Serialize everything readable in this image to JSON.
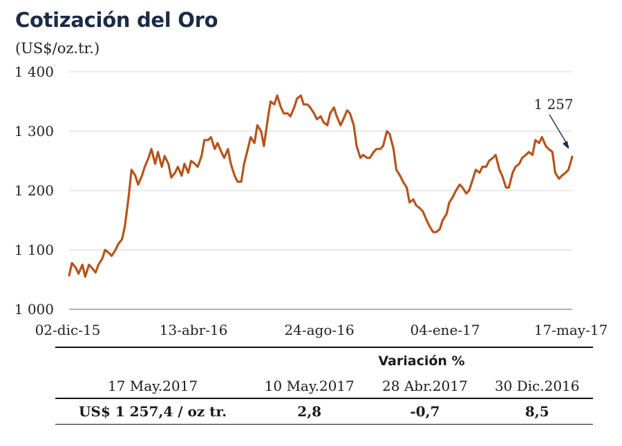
{
  "title": "Cotización del Oro",
  "subtitle": "(US$/oz.tr.)",
  "chart_data": {
    "type": "line",
    "title": "Cotización del Oro",
    "ylabel": "(US$/oz.tr.)",
    "ylim": [
      1000,
      1400
    ],
    "yticks": [
      "1 000",
      "1 100",
      "1 200",
      "1 300",
      "1 400"
    ],
    "ytick_values": [
      1000,
      1100,
      1200,
      1300,
      1400
    ],
    "xticks": [
      "02-dic-15",
      "13-abr-16",
      "24-ago-16",
      "04-ene-17",
      "17-may-17"
    ],
    "xlim": [
      "2015-12-02",
      "2017-05-17"
    ],
    "grid": "horizontal",
    "color": "#b5541c",
    "annotation": "1 257",
    "series": [
      {
        "x": [
          "2015-12-02",
          "2015-12-05",
          "2015-12-09",
          "2015-12-12",
          "2015-12-16",
          "2015-12-19",
          "2015-12-23",
          "2015-12-26",
          "2015-12-30",
          "2016-01-02",
          "2016-01-06",
          "2016-01-09",
          "2016-01-13",
          "2016-01-16",
          "2016-01-20",
          "2016-01-23",
          "2016-01-27",
          "2016-01-30",
          "2016-02-03",
          "2016-02-06",
          "2016-02-10",
          "2016-02-13",
          "2016-02-17",
          "2016-02-20",
          "2016-02-24",
          "2016-02-27",
          "2016-03-02",
          "2016-03-05",
          "2016-03-09",
          "2016-03-12",
          "2016-03-16",
          "2016-03-19",
          "2016-03-23",
          "2016-03-26",
          "2016-03-30",
          "2016-04-02",
          "2016-04-06",
          "2016-04-09",
          "2016-04-13",
          "2016-04-16",
          "2016-04-20",
          "2016-04-23",
          "2016-04-27",
          "2016-04-30",
          "2016-05-04",
          "2016-05-07",
          "2016-05-11",
          "2016-05-14",
          "2016-05-18",
          "2016-05-21",
          "2016-05-25",
          "2016-05-28",
          "2016-06-01",
          "2016-06-04",
          "2016-06-08",
          "2016-06-11",
          "2016-06-15",
          "2016-06-18",
          "2016-06-22",
          "2016-06-25",
          "2016-06-29",
          "2016-07-02",
          "2016-07-06",
          "2016-07-09",
          "2016-07-13",
          "2016-07-16",
          "2016-07-20",
          "2016-07-23",
          "2016-07-27",
          "2016-07-30",
          "2016-08-03",
          "2016-08-06",
          "2016-08-10",
          "2016-08-13",
          "2016-08-17",
          "2016-08-20",
          "2016-08-24",
          "2016-08-27",
          "2016-08-31",
          "2016-09-03",
          "2016-09-07",
          "2016-09-10",
          "2016-09-14",
          "2016-09-17",
          "2016-09-21",
          "2016-09-24",
          "2016-09-28",
          "2016-10-01",
          "2016-10-05",
          "2016-10-08",
          "2016-10-12",
          "2016-10-15",
          "2016-10-19",
          "2016-10-22",
          "2016-10-26",
          "2016-10-29",
          "2016-11-02",
          "2016-11-05",
          "2016-11-09",
          "2016-11-12",
          "2016-11-16",
          "2016-11-19",
          "2016-11-23",
          "2016-11-26",
          "2016-11-30",
          "2016-12-03",
          "2016-12-07",
          "2016-12-10",
          "2016-12-14",
          "2016-12-17",
          "2016-12-21",
          "2016-12-24",
          "2016-12-28",
          "2016-12-31",
          "2017-01-04",
          "2017-01-07",
          "2017-01-11",
          "2017-01-14",
          "2017-01-18",
          "2017-01-21",
          "2017-01-25",
          "2017-01-28",
          "2017-02-01",
          "2017-02-04",
          "2017-02-08",
          "2017-02-11",
          "2017-02-15",
          "2017-02-18",
          "2017-02-22",
          "2017-02-25",
          "2017-03-01",
          "2017-03-04",
          "2017-03-08",
          "2017-03-11",
          "2017-03-15",
          "2017-03-18",
          "2017-03-22",
          "2017-03-25",
          "2017-03-29",
          "2017-04-01",
          "2017-04-05",
          "2017-04-08",
          "2017-04-12",
          "2017-04-15",
          "2017-04-19",
          "2017-04-22",
          "2017-04-26",
          "2017-04-29",
          "2017-05-03",
          "2017-05-06",
          "2017-05-10",
          "2017-05-13",
          "2017-05-17"
        ],
        "y": [
          1057,
          1078,
          1070,
          1060,
          1075,
          1055,
          1075,
          1070,
          1062,
          1075,
          1085,
          1100,
          1095,
          1090,
          1100,
          1110,
          1118,
          1140,
          1190,
          1235,
          1225,
          1210,
          1225,
          1240,
          1255,
          1270,
          1245,
          1265,
          1240,
          1258,
          1245,
          1222,
          1230,
          1240,
          1225,
          1245,
          1230,
          1250,
          1245,
          1240,
          1258,
          1285,
          1285,
          1290,
          1270,
          1280,
          1265,
          1255,
          1270,
          1245,
          1225,
          1215,
          1215,
          1245,
          1270,
          1290,
          1280,
          1310,
          1300,
          1275,
          1320,
          1350,
          1345,
          1360,
          1340,
          1330,
          1330,
          1325,
          1340,
          1355,
          1360,
          1345,
          1345,
          1340,
          1330,
          1320,
          1325,
          1315,
          1310,
          1330,
          1340,
          1325,
          1310,
          1320,
          1335,
          1330,
          1310,
          1275,
          1255,
          1260,
          1255,
          1255,
          1265,
          1270,
          1270,
          1275,
          1300,
          1295,
          1270,
          1235,
          1225,
          1215,
          1205,
          1180,
          1185,
          1175,
          1170,
          1165,
          1150,
          1140,
          1130,
          1130,
          1135,
          1150,
          1160,
          1180,
          1190,
          1200,
          1210,
          1205,
          1195,
          1200,
          1220,
          1235,
          1230,
          1240,
          1240,
          1250,
          1255,
          1260,
          1235,
          1225,
          1205,
          1205,
          1230,
          1240,
          1245,
          1255,
          1260,
          1265,
          1260,
          1285,
          1280,
          1290,
          1275,
          1270,
          1265,
          1230,
          1220,
          1225,
          1230,
          1235,
          1257
        ]
      }
    ]
  },
  "table": {
    "variation_header": "Variación %",
    "reference_date": "17 May.2017",
    "compare_dates": [
      "10 May.2017",
      "28 Abr.2017",
      "30 Dic.2016"
    ],
    "price_label": "US$ 1 257,4 / oz tr.",
    "variations": [
      "2,8",
      "-0,7",
      "8,5"
    ]
  }
}
